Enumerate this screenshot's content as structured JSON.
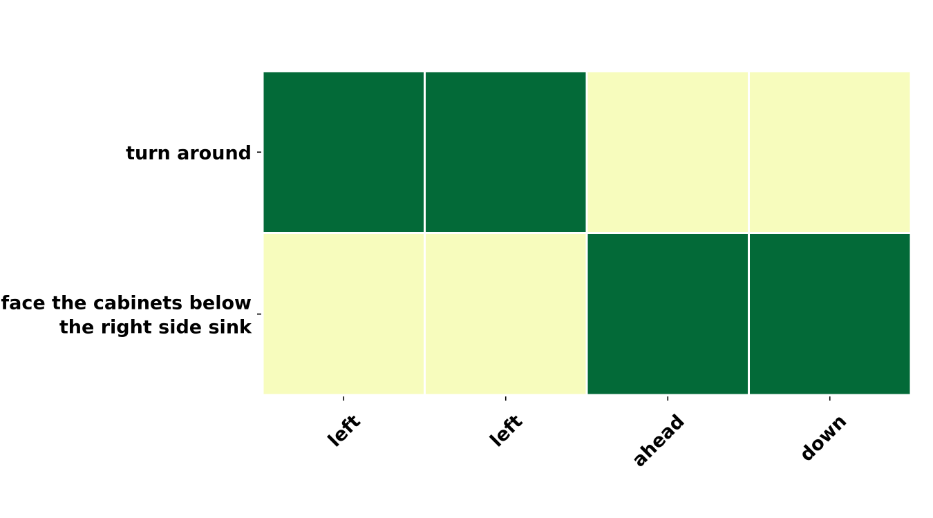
{
  "chart_data": {
    "type": "heatmap",
    "title": "",
    "xlabel": "",
    "ylabel": "",
    "x_categories": [
      "left",
      "left",
      "ahead",
      "down"
    ],
    "y_categories": [
      [
        "turn around"
      ],
      [
        "face the cabinets below",
        "the right side sink"
      ]
    ],
    "values": [
      [
        1,
        1,
        0,
        0
      ],
      [
        0,
        0,
        1,
        1
      ]
    ],
    "value_range": [
      0,
      1
    ],
    "colors": {
      "low": "#f7fcbd",
      "high": "#036a38",
      "cell_border": "#ffffff"
    },
    "colorbar": false,
    "grid": false
  }
}
